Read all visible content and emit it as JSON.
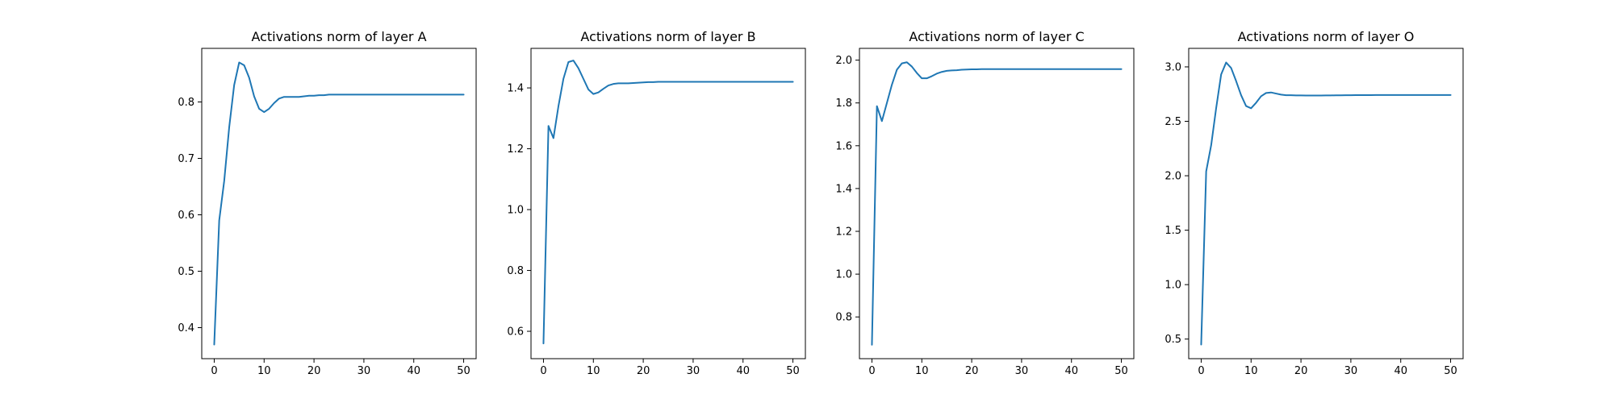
{
  "chart_data": [
    {
      "type": "line",
      "title": "Activations norm of layer A",
      "xlabel": "",
      "ylabel": "",
      "xlim": [
        -2.5,
        52.5
      ],
      "ylim": [
        0.345,
        0.895
      ],
      "xticks": [
        0,
        10,
        20,
        30,
        40,
        50
      ],
      "yticks": [
        0.4,
        0.5,
        0.6,
        0.7,
        0.8
      ],
      "grid": false,
      "color": "#1f77b4",
      "series": [
        {
          "x": [
            0,
            1,
            2,
            3,
            4,
            5,
            6,
            7,
            8,
            9,
            10,
            11,
            12,
            13,
            14,
            15,
            16,
            17,
            18,
            19,
            20,
            21,
            22,
            23,
            24,
            25,
            26,
            27,
            28,
            29,
            30,
            31,
            32,
            33,
            34,
            35,
            36,
            37,
            38,
            39,
            40,
            41,
            42,
            43,
            44,
            45,
            46,
            47,
            48,
            49,
            50
          ],
          "y": [
            0.37,
            0.59,
            0.66,
            0.755,
            0.83,
            0.87,
            0.865,
            0.843,
            0.81,
            0.788,
            0.782,
            0.788,
            0.798,
            0.806,
            0.809,
            0.809,
            0.809,
            0.809,
            0.81,
            0.811,
            0.811,
            0.812,
            0.812,
            0.813,
            0.813,
            0.813,
            0.813,
            0.813,
            0.813,
            0.813,
            0.813,
            0.813,
            0.813,
            0.813,
            0.813,
            0.813,
            0.813,
            0.813,
            0.813,
            0.813,
            0.813,
            0.813,
            0.813,
            0.813,
            0.813,
            0.813,
            0.813,
            0.813,
            0.813,
            0.813,
            0.813
          ]
        }
      ]
    },
    {
      "type": "line",
      "title": "Activations norm of layer B",
      "xlabel": "",
      "ylabel": "",
      "xlim": [
        -2.5,
        52.5
      ],
      "ylim": [
        0.51,
        1.53
      ],
      "xticks": [
        0,
        10,
        20,
        30,
        40,
        50
      ],
      "yticks": [
        0.6,
        0.8,
        1.0,
        1.2,
        1.4
      ],
      "grid": false,
      "color": "#1f77b4",
      "series": [
        {
          "x": [
            0,
            1,
            2,
            3,
            4,
            5,
            6,
            7,
            8,
            9,
            10,
            11,
            12,
            13,
            14,
            15,
            16,
            17,
            18,
            19,
            20,
            21,
            22,
            23,
            24,
            25,
            26,
            27,
            28,
            29,
            30,
            31,
            32,
            33,
            34,
            35,
            36,
            37,
            38,
            39,
            40,
            41,
            42,
            43,
            44,
            45,
            46,
            47,
            48,
            49,
            50
          ],
          "y": [
            0.56,
            1.275,
            1.235,
            1.34,
            1.43,
            1.485,
            1.49,
            1.465,
            1.43,
            1.395,
            1.38,
            1.385,
            1.397,
            1.408,
            1.413,
            1.415,
            1.415,
            1.415,
            1.416,
            1.417,
            1.418,
            1.419,
            1.419,
            1.42,
            1.42,
            1.42,
            1.42,
            1.42,
            1.42,
            1.42,
            1.42,
            1.42,
            1.42,
            1.42,
            1.42,
            1.42,
            1.42,
            1.42,
            1.42,
            1.42,
            1.42,
            1.42,
            1.42,
            1.42,
            1.42,
            1.42,
            1.42,
            1.42,
            1.42,
            1.42,
            1.42
          ]
        }
      ]
    },
    {
      "type": "line",
      "title": "Activations norm of layer C",
      "xlabel": "",
      "ylabel": "",
      "xlim": [
        -2.5,
        52.5
      ],
      "ylim": [
        0.605,
        2.055
      ],
      "xticks": [
        0,
        10,
        20,
        30,
        40,
        50
      ],
      "yticks": [
        0.8,
        1.0,
        1.2,
        1.4,
        1.6,
        1.8,
        2.0
      ],
      "grid": false,
      "color": "#1f77b4",
      "series": [
        {
          "x": [
            0,
            1,
            2,
            3,
            4,
            5,
            6,
            7,
            8,
            9,
            10,
            11,
            12,
            13,
            14,
            15,
            16,
            17,
            18,
            19,
            20,
            21,
            22,
            23,
            24,
            25,
            26,
            27,
            28,
            29,
            30,
            31,
            32,
            33,
            34,
            35,
            36,
            37,
            38,
            39,
            40,
            41,
            42,
            43,
            44,
            45,
            46,
            47,
            48,
            49,
            50
          ],
          "y": [
            0.67,
            1.785,
            1.715,
            1.8,
            1.885,
            1.955,
            1.985,
            1.99,
            1.97,
            1.94,
            1.915,
            1.915,
            1.925,
            1.937,
            1.945,
            1.95,
            1.952,
            1.953,
            1.955,
            1.956,
            1.957,
            1.957,
            1.958,
            1.958,
            1.958,
            1.958,
            1.958,
            1.958,
            1.958,
            1.958,
            1.958,
            1.958,
            1.958,
            1.958,
            1.958,
            1.958,
            1.958,
            1.958,
            1.958,
            1.958,
            1.958,
            1.958,
            1.958,
            1.958,
            1.958,
            1.958,
            1.958,
            1.958,
            1.958,
            1.958,
            1.958
          ]
        }
      ]
    },
    {
      "type": "line",
      "title": "Activations norm of layer O",
      "xlabel": "",
      "ylabel": "",
      "xlim": [
        -2.5,
        52.5
      ],
      "ylim": [
        0.32,
        3.17
      ],
      "xticks": [
        0,
        10,
        20,
        30,
        40,
        50
      ],
      "yticks": [
        0.5,
        1.0,
        1.5,
        2.0,
        2.5,
        3.0
      ],
      "grid": false,
      "color": "#1f77b4",
      "series": [
        {
          "x": [
            0,
            1,
            2,
            3,
            4,
            5,
            6,
            7,
            8,
            9,
            10,
            11,
            12,
            13,
            14,
            15,
            16,
            17,
            18,
            19,
            20,
            21,
            22,
            23,
            24,
            25,
            26,
            27,
            28,
            29,
            30,
            31,
            32,
            33,
            34,
            35,
            36,
            37,
            38,
            39,
            40,
            41,
            42,
            43,
            44,
            45,
            46,
            47,
            48,
            49,
            50
          ],
          "y": [
            0.45,
            2.04,
            2.28,
            2.62,
            2.93,
            3.04,
            2.99,
            2.87,
            2.74,
            2.64,
            2.62,
            2.67,
            2.73,
            2.76,
            2.765,
            2.755,
            2.745,
            2.74,
            2.74,
            2.738,
            2.738,
            2.737,
            2.737,
            2.737,
            2.737,
            2.738,
            2.738,
            2.739,
            2.739,
            2.74,
            2.74,
            2.741,
            2.741,
            2.741,
            2.741,
            2.742,
            2.742,
            2.742,
            2.742,
            2.742,
            2.742,
            2.742,
            2.742,
            2.742,
            2.742,
            2.742,
            2.742,
            2.742,
            2.742,
            2.742,
            2.742
          ]
        }
      ]
    }
  ]
}
